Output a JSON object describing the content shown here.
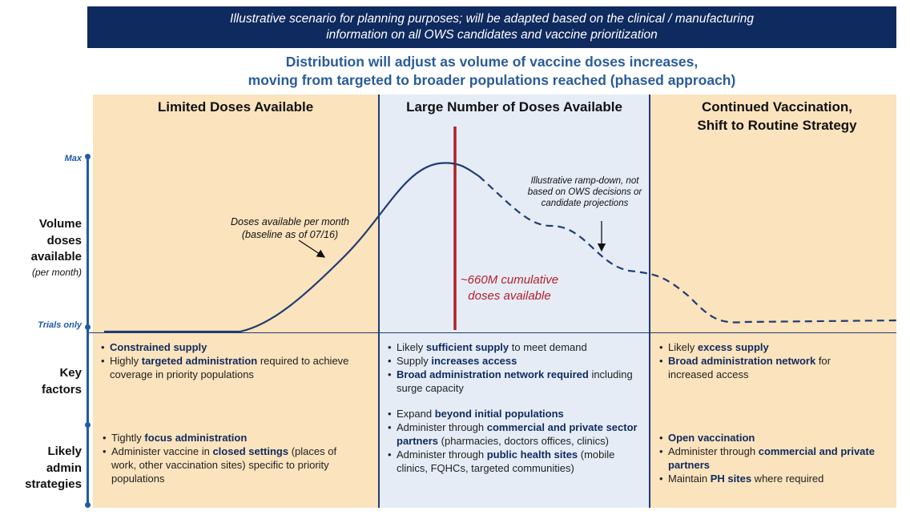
{
  "banner": {
    "line1": "Illustrative scenario for planning purposes; will be adapted based on the clinical / manufacturing",
    "line2": "information on all OWS candidates and vaccine prioritization"
  },
  "headline": {
    "line1": "Distribution will adjust as volume of vaccine doses increases,",
    "line2": "moving from targeted to broader populations reached (phased approach)"
  },
  "phases": [
    {
      "title_line1": "Limited Doses Available",
      "title_line2": ""
    },
    {
      "title_line1": "Large Number of Doses Available",
      "title_line2": ""
    },
    {
      "title_line1": "Continued Vaccination,",
      "title_line2": "Shift to Routine Strategy"
    }
  ],
  "axis": {
    "max_label": "Max",
    "min_label": "Trials only"
  },
  "row_labels": {
    "volume": {
      "l1": "Volume",
      "l2": "doses",
      "l3": "available",
      "sub": "(per month)"
    },
    "key": {
      "l1": "Key",
      "l2": "factors"
    },
    "admin": {
      "l1": "Likely",
      "l2": "admin",
      "l3": "strategies"
    }
  },
  "annotations": {
    "doses_line1": "Doses available per month",
    "doses_line2": "(baseline as of 07/16)",
    "ramp_line1": "Illustrative ramp-down, not",
    "ramp_line2": "based on OWS decisions or",
    "ramp_line3": "candidate projections",
    "cum_line1": "~660M cumulative",
    "cum_line2": "doses available"
  },
  "key_factors": {
    "p1": [
      {
        "b1": "Constrained supply"
      },
      {
        "pre": "Highly ",
        "b1": "targeted administration",
        "post": " required to achieve coverage in priority populations"
      }
    ],
    "p2": [
      {
        "pre": "Likely ",
        "b1": "sufficient supply",
        "post": " to meet demand"
      },
      {
        "pre": "Supply ",
        "b1": "increases access"
      },
      {
        "b1": "Broad administration network required",
        "post": " including surge capacity"
      }
    ],
    "p3": [
      {
        "pre": "Likely ",
        "b1": "excess supply"
      },
      {
        "b1": "Broad administration network",
        "post": " for increased access"
      }
    ]
  },
  "admin_strategies": {
    "p1": [
      {
        "pre": "Tightly ",
        "b1": "focus administration"
      },
      {
        "pre": "Administer vaccine in ",
        "b1": "closed settings",
        "post": " (places of work, other vaccination sites) specific to priority populations"
      }
    ],
    "p2": [
      {
        "pre": "Expand ",
        "b1": "beyond initial populations"
      },
      {
        "pre": "Administer through ",
        "b1": "commercial and private sector partners",
        "post": " (pharmacies, doctors offices, clinics)"
      },
      {
        "pre": "Administer through ",
        "b1": "public health sites",
        "post": " (mobile clinics, FQHCs, targeted communities)"
      }
    ],
    "p3": [
      {
        "b1": "Open vaccination"
      },
      {
        "pre": "Administer through ",
        "b1": "commercial and private partners"
      },
      {
        "pre": "Maintain ",
        "b1": "PH sites",
        "post": " where required"
      }
    ]
  },
  "colors": {
    "navy": "#0f2a5e",
    "accent_blue": "#1f5aa6",
    "headline_blue": "#2a5c9a",
    "peach": "#fbe3bd",
    "light_blue": "#e5ecf6",
    "red": "#b3202a"
  }
}
